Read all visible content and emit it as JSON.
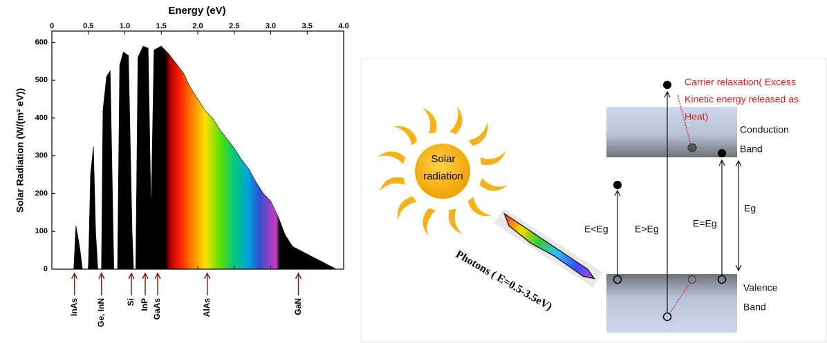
{
  "chart_data": {
    "type": "area",
    "title": "Energy (eV)",
    "y_label": "Solar Radiation (W/(m² eV))",
    "x": [
      0.3,
      0.33,
      0.38,
      0.42,
      0.5,
      0.53,
      0.57,
      0.6,
      0.63,
      0.68,
      0.7,
      0.75,
      0.8,
      0.85,
      0.9,
      0.93,
      0.98,
      1.05,
      1.1,
      1.12,
      1.15,
      1.18,
      1.25,
      1.32,
      1.36,
      1.4,
      1.5,
      1.6,
      1.7,
      1.8,
      1.9,
      2.0,
      2.1,
      2.2,
      2.3,
      2.4,
      2.5,
      2.6,
      2.7,
      2.8,
      2.9,
      3.0,
      3.1,
      3.2,
      3.3,
      3.5,
      3.7,
      3.85,
      3.9
    ],
    "values": [
      0,
      115,
      60,
      0,
      0,
      250,
      325,
      100,
      0,
      0,
      420,
      510,
      525,
      0,
      0,
      540,
      575,
      565,
      100,
      0,
      0,
      560,
      590,
      585,
      150,
      580,
      590,
      570,
      545,
      520,
      480,
      450,
      420,
      400,
      370,
      345,
      320,
      290,
      265,
      230,
      200,
      180,
      140,
      90,
      60,
      40,
      20,
      5,
      0
    ],
    "xlim": [
      0,
      4
    ],
    "xticks": [
      0,
      0.5,
      {
        "value": 1,
        "label": "1.0"
      },
      1.5,
      {
        "value": 2,
        "label": "2.0"
      },
      2.5,
      {
        "value": 3,
        "label": "3.0"
      },
      3.5,
      {
        "value": 4,
        "label": "4.0"
      }
    ],
    "ylim": [
      0,
      630
    ],
    "yticks": [
      0,
      100,
      200,
      300,
      400,
      500,
      600
    ],
    "markers": [
      {
        "label": "InAs",
        "x": 0.31
      },
      {
        "label": "Ge, InN",
        "x": 0.68
      },
      {
        "label": "Si",
        "x": 1.09
      },
      {
        "label": "InP",
        "x": 1.28
      },
      {
        "label": "GaAs",
        "x": 1.45
      },
      {
        "label": "AlAs",
        "x": 2.13
      },
      {
        "label": "GaN",
        "x": 3.38
      }
    ],
    "marker_color": "#8b1a1a"
  },
  "diagram": {
    "sun": [
      "Solar",
      "radiation"
    ],
    "photons": "Photons ( E=0.5-3.5eV)",
    "relaxation": [
      "Carrier relaxation( Excess",
      "Kinetic energy released as",
      "Heat)"
    ],
    "conduction": [
      "Conduction",
      "Band"
    ],
    "valence": [
      "Valence",
      "Band"
    ],
    "e_lt": "E<Eg",
    "e_gt": "E>Eg",
    "e_eq": "E=Eg",
    "eg": "Eg"
  }
}
